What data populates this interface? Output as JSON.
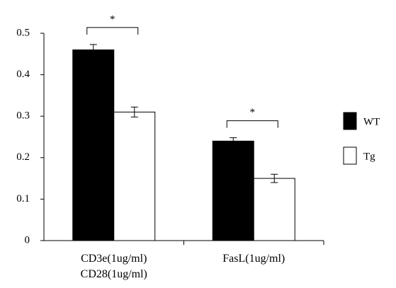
{
  "chart_data": {
    "type": "bar",
    "categories": [
      "CD3e(1ug/ml)\nCD28(1ug/ml)",
      "FasL(1ug/ml)"
    ],
    "series": [
      {
        "name": "WT",
        "color": "#000000",
        "values": [
          0.46,
          0.24
        ],
        "errors": [
          0.013,
          0.008
        ]
      },
      {
        "name": "Tg",
        "color": "#ffffff",
        "values": [
          0.31,
          0.15
        ],
        "errors": [
          0.012,
          0.01
        ]
      }
    ],
    "ylim": [
      0,
      0.5
    ],
    "yticks": [
      0,
      0.1,
      0.2,
      0.3,
      0.4,
      0.5
    ],
    "annotations": [
      "*",
      "*"
    ],
    "grid": false
  }
}
